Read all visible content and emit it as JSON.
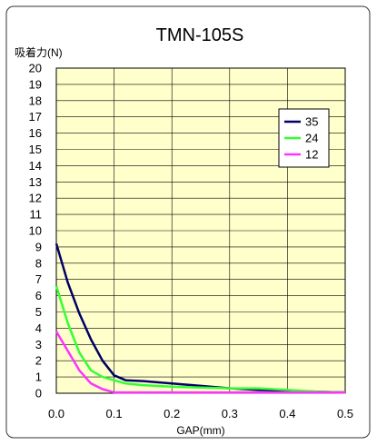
{
  "chart_data": {
    "type": "line",
    "title": "TMN-105S",
    "xlabel": "GAP(mm)",
    "ylabel": "吸着力(N)",
    "xlim": [
      0,
      0.5
    ],
    "ylim": [
      0,
      20
    ],
    "x_ticks": [
      "0.0",
      "0.1",
      "0.2",
      "0.3",
      "0.4",
      "0.5"
    ],
    "y_ticks": [
      "0",
      "1",
      "2",
      "3",
      "4",
      "5",
      "6",
      "7",
      "8",
      "9",
      "10",
      "11",
      "12",
      "13",
      "14",
      "15",
      "16",
      "17",
      "18",
      "19",
      "20"
    ],
    "grid": true,
    "legend_position": "top-right",
    "plot_background": "#FFFFCC",
    "series": [
      {
        "name": "35",
        "color": "#000066",
        "x": [
          0,
          0.02,
          0.04,
          0.06,
          0.08,
          0.1,
          0.12,
          0.15,
          0.2,
          0.25,
          0.3,
          0.35,
          0.4,
          0.45,
          0.5
        ],
        "y": [
          9.2,
          6.8,
          4.9,
          3.3,
          2.0,
          1.1,
          0.8,
          0.75,
          0.6,
          0.45,
          0.3,
          0.2,
          0.15,
          0.1,
          0.05
        ]
      },
      {
        "name": "24",
        "color": "#33FF33",
        "x": [
          0,
          0.02,
          0.04,
          0.06,
          0.08,
          0.1,
          0.12,
          0.15,
          0.2,
          0.25,
          0.3,
          0.35,
          0.4,
          0.45,
          0.5
        ],
        "y": [
          6.6,
          4.3,
          2.5,
          1.4,
          1.0,
          0.8,
          0.6,
          0.5,
          0.4,
          0.35,
          0.3,
          0.3,
          0.2,
          0.1,
          0.05
        ]
      },
      {
        "name": "12",
        "color": "#FF33FF",
        "x": [
          0,
          0.02,
          0.04,
          0.06,
          0.08,
          0.1,
          0.12,
          0.15,
          0.2,
          0.3,
          0.4,
          0.5
        ],
        "y": [
          3.8,
          2.6,
          1.4,
          0.6,
          0.25,
          0.05,
          0.05,
          0.05,
          0.05,
          0.05,
          0.05,
          0.05
        ]
      }
    ]
  }
}
